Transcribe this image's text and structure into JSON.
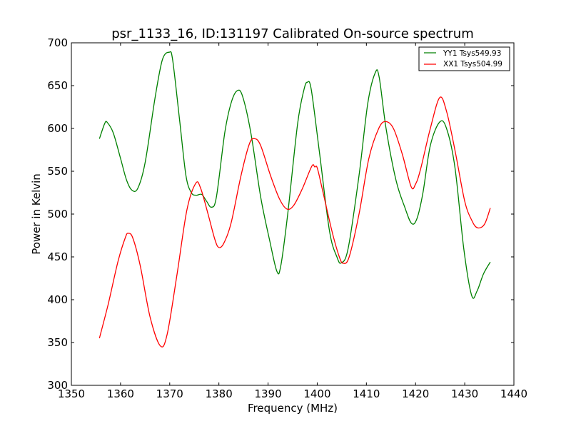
{
  "chart_data": {
    "type": "line",
    "title": "psr_1133_16, ID:131197 Calibrated On-source spectrum",
    "xlabel": "Frequency (MHz)",
    "ylabel": "Power in Kelvin",
    "xlim": [
      1350,
      1440
    ],
    "ylim": [
      300,
      700
    ],
    "xticks": [
      1350,
      1360,
      1370,
      1380,
      1390,
      1400,
      1410,
      1420,
      1430,
      1440
    ],
    "yticks": [
      300,
      350,
      400,
      450,
      500,
      550,
      600,
      650,
      700
    ],
    "grid": false,
    "legend_position": "top-right",
    "series": [
      {
        "name": "YY1 Tsys549.93",
        "color": "#008000",
        "x": [
          1355.7,
          1356.8,
          1357.3,
          1358.5,
          1360.0,
          1361.2,
          1362.3,
          1363.5,
          1365.0,
          1367.0,
          1368.5,
          1369.9,
          1370.6,
          1372.0,
          1373.3,
          1374.4,
          1375.4,
          1376.5,
          1377.5,
          1378.5,
          1379.5,
          1381.2,
          1382.5,
          1383.7,
          1384.8,
          1386.5,
          1388.5,
          1390.3,
          1391.8,
          1392.6,
          1394.0,
          1396.0,
          1397.3,
          1398.0,
          1398.8,
          1400.5,
          1402.5,
          1404.0,
          1404.9,
          1406.3,
          1408.5,
          1410.3,
          1411.8,
          1412.6,
          1414.0,
          1416.0,
          1417.8,
          1419.2,
          1420.3,
          1421.5,
          1423.0,
          1424.9,
          1426.3,
          1428.0,
          1429.8,
          1431.4,
          1432.5,
          1433.8,
          1435.2
        ],
        "y": [
          588,
          606,
          607,
          595,
          565,
          540,
          528,
          530,
          560,
          635,
          680,
          689,
          680,
          610,
          545,
          525,
          522,
          523,
          515,
          508,
          520,
          595,
          630,
          644,
          638,
          595,
          520,
          470,
          433,
          440,
          500,
          605,
          645,
          654,
          645,
          570,
          480,
          450,
          443,
          460,
          545,
          630,
          665,
          660,
          600,
          540,
          508,
          489,
          495,
          525,
          580,
          607.5,
          600,
          555,
          460,
          405,
          410,
          430,
          444
        ]
      },
      {
        "name": "XX1 Tsys504.99",
        "color": "#ff0000",
        "x": [
          1355.7,
          1357.5,
          1359.5,
          1361.0,
          1361.6,
          1362.5,
          1364.0,
          1366.0,
          1368.1,
          1369.5,
          1371.5,
          1373.5,
          1375.3,
          1376.3,
          1377.8,
          1379.2,
          1380.0,
          1381.0,
          1382.5,
          1384.5,
          1386.2,
          1387.3,
          1388.5,
          1390.5,
          1392.3,
          1393.8,
          1395.2,
          1397.0,
          1398.9,
          1399.5,
          1400.0,
          1401.0,
          1403.0,
          1404.5,
          1405.3,
          1406.5,
          1408.5,
          1410.5,
          1412.5,
          1413.9,
          1415.5,
          1417.3,
          1419.1,
          1420.0,
          1421.0,
          1423.0,
          1424.9,
          1426.3,
          1428.0,
          1430.0,
          1431.5,
          1432.6,
          1434.0,
          1435.2
        ],
        "y": [
          355,
          395,
          445,
          473,
          477.5,
          472,
          440,
          380,
          346,
          360,
          430,
          505,
          536,
          530,
          500,
          470,
          461,
          466,
          490,
          545,
          582,
          588,
          580,
          545,
          518,
          506,
          510,
          530,
          556,
          555,
          554,
          530,
          480,
          450,
          442.5,
          450,
          500,
          565,
          600,
          608,
          600,
          570,
          532,
          535,
          552,
          600,
          636,
          620,
          575,
          515,
          492,
          484,
          488,
          507
        ]
      }
    ]
  }
}
